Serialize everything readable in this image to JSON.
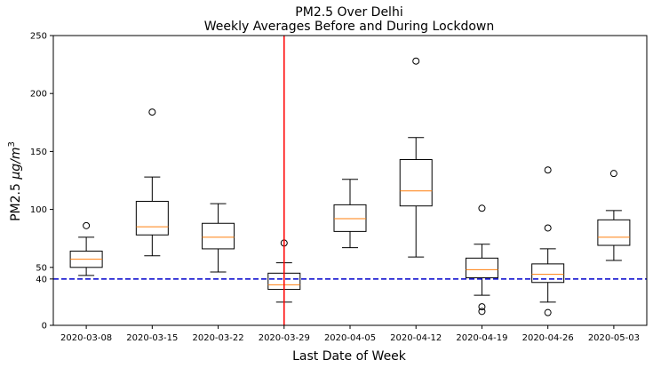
{
  "chart_data": {
    "type": "box",
    "title": "PM2.5 Over Delhi",
    "subtitle": "Weekly Averages Before and During Lockdown",
    "xlabel": "Last Date of Week",
    "ylabel_main": "PM2.5 ",
    "ylabel_unit": "μg/m",
    "ylabel_sup": "3",
    "ylim": [
      0,
      250
    ],
    "yticks": [
      0,
      40,
      50,
      100,
      150,
      200,
      250
    ],
    "grid": false,
    "categories": [
      "2020-03-08",
      "2020-03-15",
      "2020-03-22",
      "2020-03-29",
      "2020-04-05",
      "2020-04-12",
      "2020-04-19",
      "2020-04-26",
      "2020-05-03"
    ],
    "boxes": [
      {
        "whisker_low": 43,
        "q1": 50,
        "median": 57,
        "q3": 64,
        "whisker_high": 76,
        "outliers": [
          86
        ]
      },
      {
        "whisker_low": 60,
        "q1": 78,
        "median": 85,
        "q3": 107,
        "whisker_high": 128,
        "outliers": [
          184
        ]
      },
      {
        "whisker_low": 46,
        "q1": 66,
        "median": 76,
        "q3": 88,
        "whisker_high": 105,
        "outliers": []
      },
      {
        "whisker_low": 20,
        "q1": 31,
        "median": 35,
        "q3": 45,
        "whisker_high": 54,
        "outliers": [
          71
        ]
      },
      {
        "whisker_low": 67,
        "q1": 81,
        "median": 92,
        "q3": 104,
        "whisker_high": 126,
        "outliers": []
      },
      {
        "whisker_low": 59,
        "q1": 103,
        "median": 116,
        "q3": 143,
        "whisker_high": 162,
        "outliers": [
          228
        ]
      },
      {
        "whisker_low": 26,
        "q1": 41,
        "median": 48,
        "q3": 58,
        "whisker_high": 70,
        "outliers": [
          101,
          16,
          12
        ]
      },
      {
        "whisker_low": 20,
        "q1": 37,
        "median": 44,
        "q3": 53,
        "whisker_high": 66,
        "outliers": [
          134,
          84,
          11
        ]
      },
      {
        "whisker_low": 56,
        "q1": 69,
        "median": 76,
        "q3": 91,
        "whisker_high": 99,
        "outliers": [
          131
        ]
      }
    ],
    "lockdown_line_x": 3.5,
    "threshold_line_y": 40,
    "colors": {
      "box": "#000000",
      "median": "#ff7f0e",
      "lockdown_line": "#ff0000",
      "threshold_line": "#0000cc"
    }
  }
}
